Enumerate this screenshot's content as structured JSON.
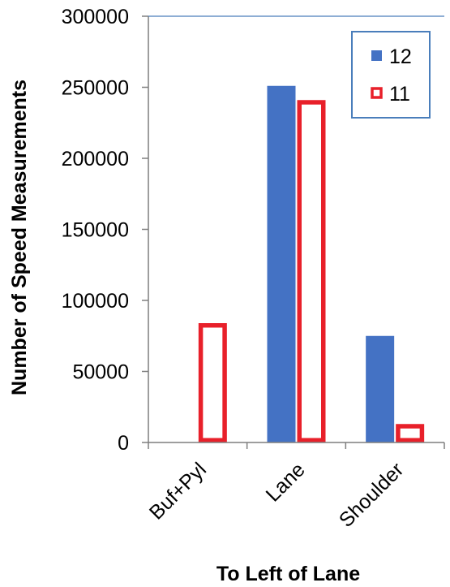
{
  "chart_data": {
    "type": "bar",
    "categories": [
      "Buf+Pyl",
      "Lane",
      "Shoulder"
    ],
    "series": [
      {
        "name": "12",
        "values": [
          0,
          251000,
          75000
        ],
        "color": "#4472C4",
        "style": "filled"
      },
      {
        "name": "11",
        "values": [
          84000,
          241000,
          13000
        ],
        "color": "#E8202A",
        "style": "outline"
      }
    ],
    "xlabel": "To Left of Lane",
    "ylabel": "Number of Speed Measurements",
    "ylim": [
      0,
      300000
    ],
    "yticks": [
      0,
      50000,
      100000,
      150000,
      200000,
      250000,
      300000
    ],
    "grid": false,
    "legend": "top-right"
  }
}
